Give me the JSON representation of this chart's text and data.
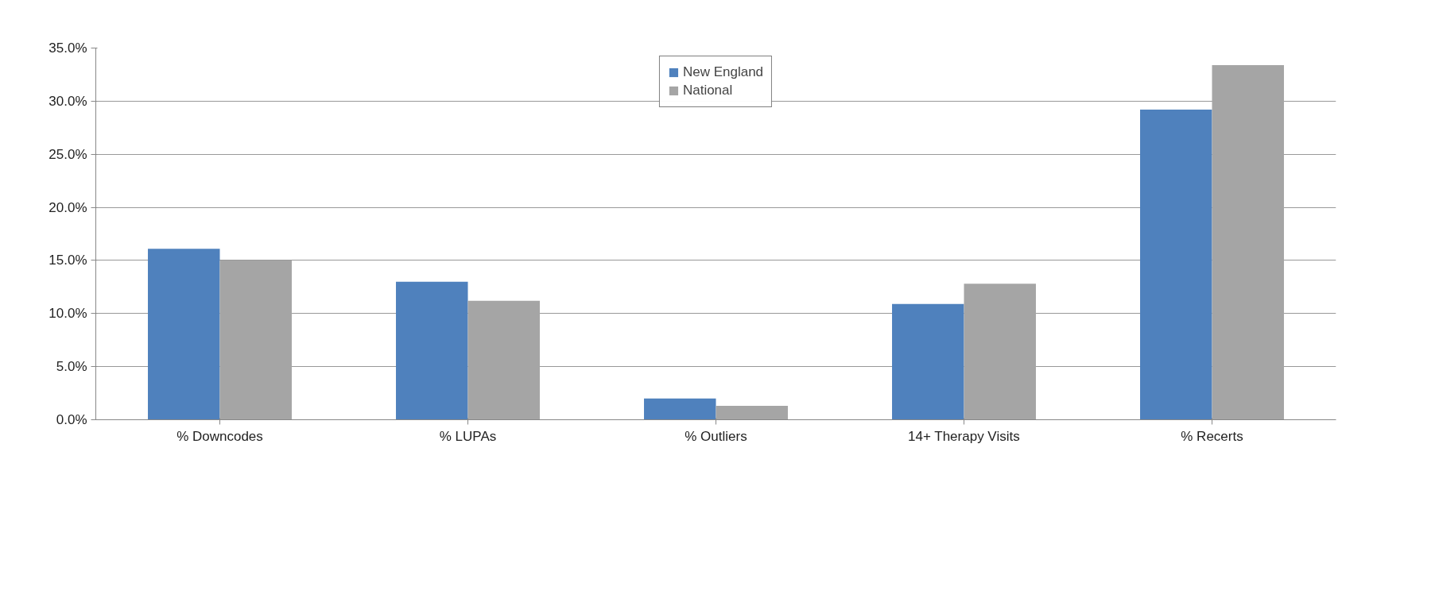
{
  "chart_data": {
    "type": "bar",
    "categories": [
      "% Downcodes",
      "% LUPAs",
      "% Outliers",
      "14+ Therapy Visits",
      "% Recerts"
    ],
    "series": [
      {
        "name": "New England",
        "color": "#4f81bd",
        "values": [
          16.1,
          13.0,
          2.0,
          10.9,
          29.2
        ]
      },
      {
        "name": "National",
        "color": "#a5a5a5",
        "values": [
          15.0,
          11.2,
          1.3,
          12.8,
          33.4
        ]
      }
    ],
    "ylim": [
      0,
      35
    ],
    "yticks": [
      {
        "value": 0,
        "label": "0.0%"
      },
      {
        "value": 5,
        "label": "5.0%"
      },
      {
        "value": 10,
        "label": "10.0%"
      },
      {
        "value": 15,
        "label": "15.0%"
      },
      {
        "value": 20,
        "label": "20.0%"
      },
      {
        "value": 25,
        "label": "25.0%"
      },
      {
        "value": 30,
        "label": "30.0%"
      },
      {
        "value": 35,
        "label": "35.0%"
      }
    ],
    "grid": "y",
    "legend": "top"
  }
}
